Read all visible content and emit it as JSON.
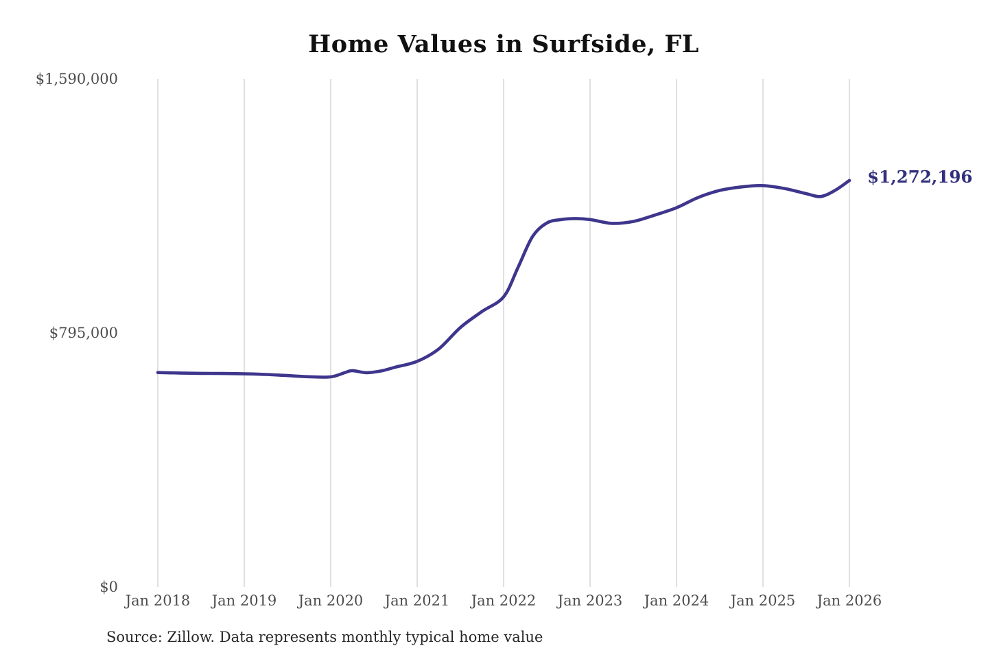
{
  "page": {
    "title": "Home Values in Surfside, FL",
    "source_note": "Source: Zillow. Data represents monthly typical home value"
  },
  "chart_data": {
    "type": "line",
    "title": "Home Values in Surfside, FL",
    "legend": "none",
    "grid": "vertical-only",
    "x_axis": {
      "start": "2018-01",
      "end": "2026-01",
      "ticks": [
        {
          "label": "Jan 2018",
          "month": "2018-01"
        },
        {
          "label": "Jan 2019",
          "month": "2019-01"
        },
        {
          "label": "Jan 2020",
          "month": "2020-01"
        },
        {
          "label": "Jan 2021",
          "month": "2021-01"
        },
        {
          "label": "Jan 2022",
          "month": "2022-01"
        },
        {
          "label": "Jan 2023",
          "month": "2023-01"
        },
        {
          "label": "Jan 2024",
          "month": "2024-01"
        },
        {
          "label": "Jan 2025",
          "month": "2025-01"
        },
        {
          "label": "Jan 2026",
          "month": "2026-01"
        }
      ]
    },
    "y_axis": {
      "min": 0,
      "max": 1590000,
      "ticks": [
        {
          "label": "$1,590,000",
          "value": 1590000
        },
        {
          "label": "$795,000",
          "value": 795000
        },
        {
          "label": "$0",
          "value": 0
        }
      ]
    },
    "series": [
      {
        "name": "Typical home value",
        "points": [
          [
            "2018-01",
            671000
          ],
          [
            "2018-04",
            669500
          ],
          [
            "2018-07",
            668500
          ],
          [
            "2018-10",
            668000
          ],
          [
            "2019-01",
            667000
          ],
          [
            "2019-04",
            665000
          ],
          [
            "2019-07",
            661500
          ],
          [
            "2019-10",
            658000
          ],
          [
            "2020-01",
            657500
          ],
          [
            "2020-03",
            671000
          ],
          [
            "2020-04",
            677000
          ],
          [
            "2020-06",
            670500
          ],
          [
            "2020-08",
            676000
          ],
          [
            "2020-10",
            688000
          ],
          [
            "2021-01",
            706000
          ],
          [
            "2021-04",
            745000
          ],
          [
            "2021-07",
            812000
          ],
          [
            "2021-10",
            862000
          ],
          [
            "2022-01",
            908000
          ],
          [
            "2022-03",
            1000000
          ],
          [
            "2022-05",
            1096000
          ],
          [
            "2022-07",
            1139000
          ],
          [
            "2022-09",
            1150000
          ],
          [
            "2022-11",
            1153000
          ],
          [
            "2023-01",
            1150000
          ],
          [
            "2023-04",
            1138000
          ],
          [
            "2023-07",
            1144000
          ],
          [
            "2023-10",
            1164000
          ],
          [
            "2024-01",
            1187000
          ],
          [
            "2024-04",
            1219000
          ],
          [
            "2024-07",
            1241000
          ],
          [
            "2024-10",
            1252000
          ],
          [
            "2025-01",
            1256000
          ],
          [
            "2025-04",
            1247000
          ],
          [
            "2025-07",
            1231000
          ],
          [
            "2025-09",
            1222000
          ],
          [
            "2025-11",
            1241000
          ],
          [
            "2026-01",
            1272196
          ]
        ]
      }
    ],
    "end_label": "$1,272,196",
    "colors": {
      "line": "#3e368c",
      "end_label": "#32307c",
      "gridline": "#cccccc",
      "tick_text": "#4d4d4d",
      "title_text": "#111111",
      "source_text": "#262626"
    }
  }
}
